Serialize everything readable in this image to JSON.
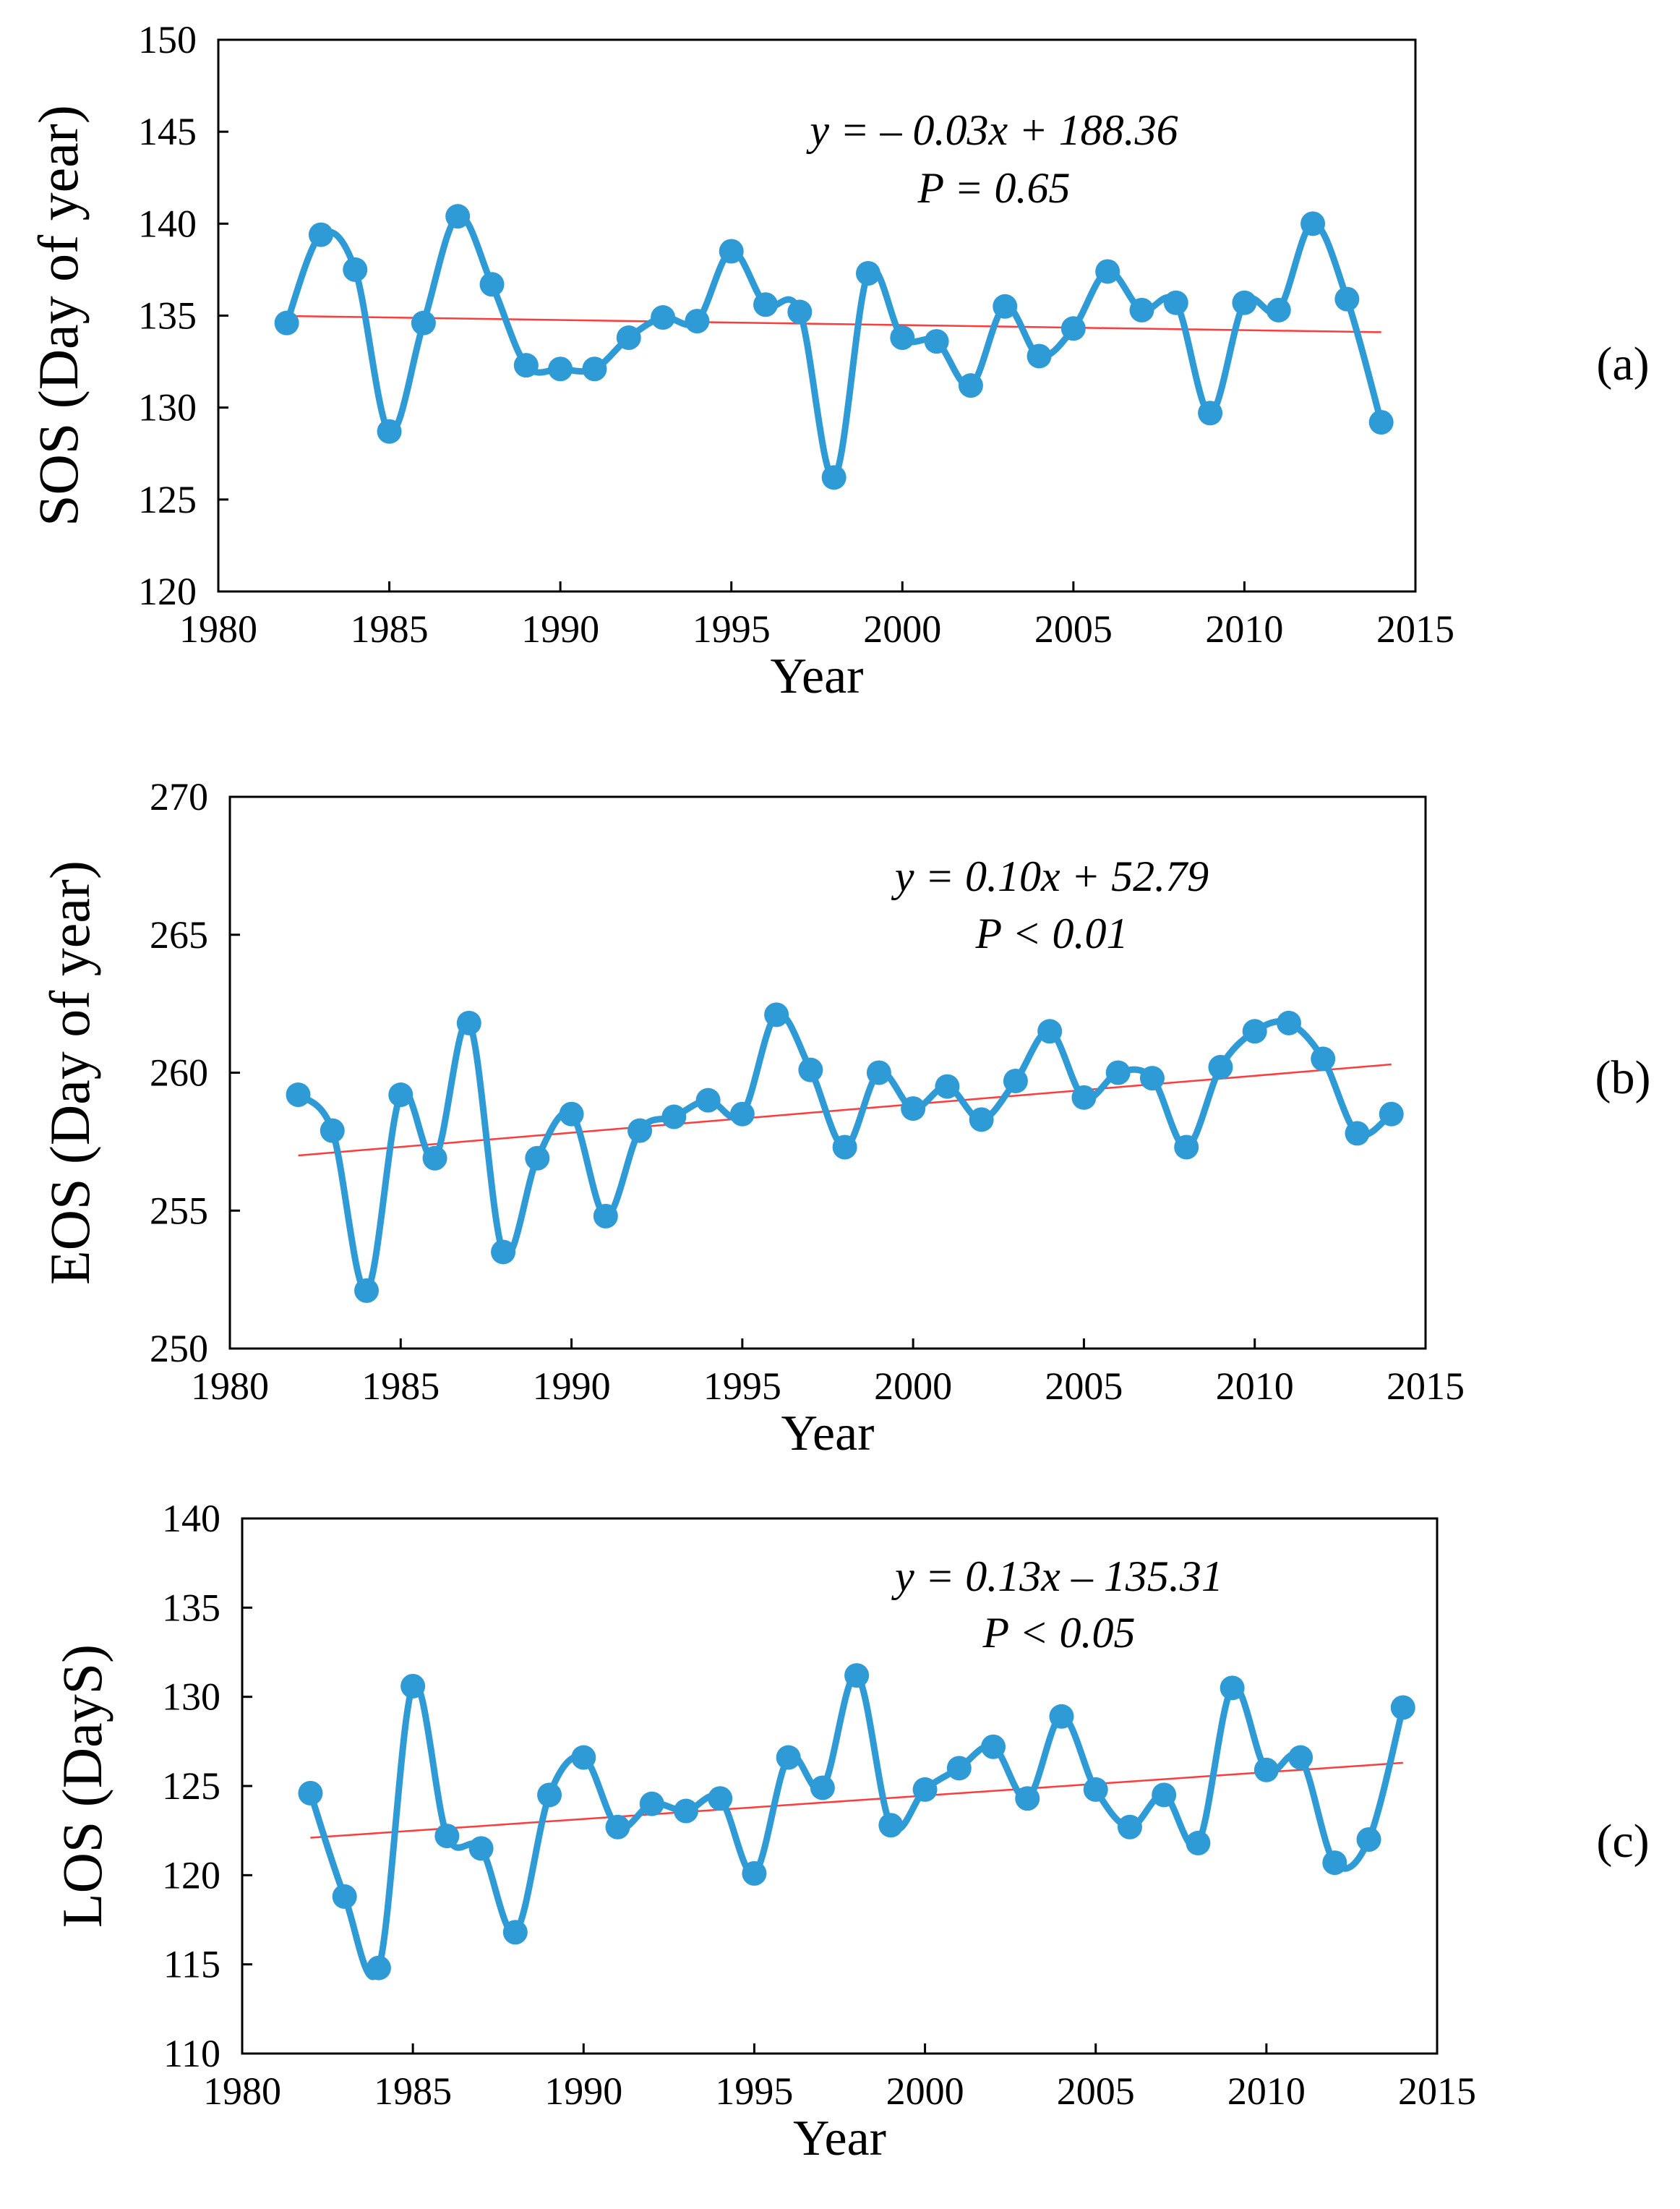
{
  "colors": {
    "series": "#2e9bd6",
    "trend": "#ff3b3b",
    "axis": "#000000"
  },
  "chart_data": [
    {
      "type": "line",
      "panel_label": "(a)",
      "xlabel": "Year",
      "ylabel": "SOS (Day of year)",
      "xlim": [
        1980,
        2015
      ],
      "ylim": [
        120,
        150
      ],
      "xticks": [
        1980,
        1985,
        1990,
        1995,
        2000,
        2005,
        2010,
        2015
      ],
      "yticks": [
        120,
        125,
        130,
        135,
        140,
        145,
        150
      ],
      "x": [
        1982,
        1983,
        1984,
        1985,
        1986,
        1987,
        1988,
        1989,
        1990,
        1991,
        1992,
        1993,
        1994,
        1995,
        1996,
        1997,
        1998,
        1999,
        2000,
        2001,
        2002,
        2003,
        2004,
        2005,
        2006,
        2007,
        2008,
        2009,
        2010,
        2011,
        2012,
        2013,
        2014
      ],
      "values": [
        134.6,
        139.4,
        137.5,
        128.7,
        134.6,
        140.4,
        136.7,
        132.3,
        132.1,
        132.1,
        133.8,
        134.9,
        134.7,
        138.5,
        135.6,
        135.2,
        126.2,
        137.3,
        133.8,
        133.6,
        131.2,
        135.5,
        132.8,
        134.3,
        137.4,
        135.3,
        135.7,
        129.7,
        135.7,
        135.3,
        140.0,
        135.9,
        129.2
      ],
      "trend": {
        "x": [
          1982,
          2014
        ],
        "y": [
          134.98,
          134.1
        ]
      },
      "annotation": {
        "equation": "y = – 0.03x + 188.36",
        "p": "P = 0.65"
      }
    },
    {
      "type": "line",
      "panel_label": "(b)",
      "xlabel": "Year",
      "ylabel": "EOS (Day of year)",
      "xlim": [
        1980,
        2015
      ],
      "ylim": [
        250,
        270
      ],
      "xticks": [
        1980,
        1985,
        1990,
        1995,
        2000,
        2005,
        2010,
        2015
      ],
      "yticks": [
        250,
        255,
        260,
        265,
        270
      ],
      "x": [
        1982,
        1983,
        1984,
        1985,
        1986,
        1987,
        1988,
        1989,
        1990,
        1991,
        1992,
        1993,
        1994,
        1995,
        1996,
        1997,
        1998,
        1999,
        2000,
        2001,
        2002,
        2003,
        2004,
        2005,
        2006,
        2007,
        2008,
        2009,
        2010,
        2011,
        2012,
        2013,
        2014
      ],
      "values": [
        259.2,
        257.9,
        252.1,
        259.2,
        256.9,
        261.8,
        253.5,
        256.9,
        258.5,
        254.8,
        257.9,
        258.4,
        259.0,
        258.5,
        262.1,
        260.1,
        257.3,
        260.0,
        258.7,
        259.5,
        258.3,
        259.7,
        261.5,
        259.1,
        260.0,
        259.8,
        257.3,
        260.2,
        261.5,
        261.8,
        260.5,
        257.8,
        258.5
      ],
      "trend": {
        "x": [
          1982,
          2014
        ],
        "y": [
          257.0,
          260.3
        ]
      },
      "annotation": {
        "equation": "y = 0.10x + 52.79",
        "p": "P < 0.01"
      }
    },
    {
      "type": "line",
      "panel_label": "(c)",
      "xlabel": "Year",
      "ylabel": "LOS (DayS)",
      "xlim": [
        1980,
        2015
      ],
      "ylim": [
        110,
        140
      ],
      "xticks": [
        1980,
        1985,
        1990,
        1995,
        2000,
        2005,
        2010,
        2015
      ],
      "yticks": [
        110,
        115,
        120,
        125,
        130,
        135,
        140
      ],
      "x": [
        1982,
        1983,
        1984,
        1985,
        1986,
        1987,
        1988,
        1989,
        1990,
        1991,
        1992,
        1993,
        1994,
        1995,
        1996,
        1997,
        1998,
        1999,
        2000,
        2001,
        2002,
        2003,
        2004,
        2005,
        2006,
        2007,
        2008,
        2009,
        2010,
        2011,
        2012,
        2013,
        2014
      ],
      "values": [
        124.6,
        118.8,
        114.8,
        130.6,
        122.2,
        121.5,
        116.8,
        124.5,
        126.6,
        122.7,
        124.0,
        123.6,
        124.3,
        120.1,
        126.6,
        124.9,
        131.2,
        122.8,
        124.8,
        126.0,
        127.2,
        124.3,
        128.9,
        124.8,
        122.7,
        124.5,
        121.8,
        130.5,
        125.9,
        126.6,
        120.7,
        122.0,
        129.4
      ],
      "trend": {
        "x": [
          1982,
          2014
        ],
        "y": [
          122.1,
          126.3
        ]
      },
      "annotation": {
        "equation": "y = 0.13x – 135.31",
        "p": "P < 0.05"
      }
    }
  ]
}
